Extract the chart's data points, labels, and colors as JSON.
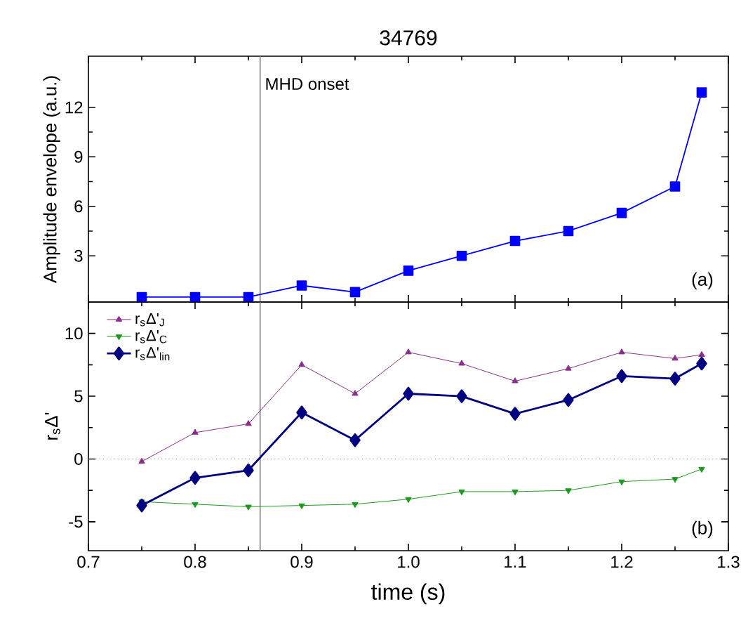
{
  "chart_data": [
    {
      "type": "line",
      "title": "34769",
      "ylabel": "Amplitude envelope (a.u.)",
      "xlim": [
        0.7,
        1.3
      ],
      "ylim": [
        0.2,
        15.1
      ],
      "xticks": [
        0.7,
        0.8,
        0.9,
        1,
        1.1,
        1.2,
        1.3
      ],
      "yticks": [
        3,
        6,
        9,
        12
      ],
      "tick_labels": "y",
      "grid": false,
      "legend": false,
      "x": [
        0.75,
        0.8,
        0.85,
        0.9,
        0.95,
        1.0,
        1.05,
        1.1,
        1.15,
        1.2,
        1.25,
        1.275
      ],
      "series": [
        {
          "color": "#0000ff",
          "marker": "square",
          "values": [
            0.5,
            0.5,
            0.5,
            1.2,
            0.8,
            2.1,
            3.0,
            3.9,
            4.5,
            5.6,
            7.2,
            12.9
          ]
        }
      ],
      "ref_lines": [
        {
          "axis": "x",
          "value": 0.861,
          "label": "MHD onset",
          "color": "#808080",
          "line_style": "solid"
        }
      ],
      "annotations": [
        "(a)"
      ]
    },
    {
      "type": "line",
      "xlabel": "time (s)",
      "ylabel": "r$_{s}$Δ'",
      "xlim": [
        0.7,
        1.3
      ],
      "ylim": [
        -7.3,
        12.5
      ],
      "xticks": [
        0.7,
        0.8,
        0.9,
        {
          "value": 1.0,
          "label": "1.0"
        },
        1.1,
        1.2,
        1.3
      ],
      "yticks": [
        -5,
        0,
        5,
        10
      ],
      "grid": false,
      "legend": "top left",
      "x": [
        0.75,
        0.8,
        0.85,
        0.9,
        0.95,
        1.0,
        1.05,
        1.1,
        1.15,
        1.2,
        1.25,
        1.275
      ],
      "series": [
        {
          "name": "r$_{s}$Δ'$_{J}$",
          "color": "#8b2e8b",
          "marker": "triangle",
          "values": [
            -0.2,
            2.1,
            2.8,
            7.5,
            5.2,
            8.5,
            7.6,
            6.2,
            7.2,
            8.5,
            8.0,
            8.3
          ]
        },
        {
          "name": "r$_{s}$Δ'$_{C}$",
          "color": "#1e9a1e",
          "marker": "triangle-down",
          "values": [
            -3.4,
            -3.6,
            -3.8,
            -3.7,
            -3.6,
            -3.2,
            -2.6,
            -2.6,
            -2.5,
            -1.8,
            -1.6,
            -0.8
          ]
        },
        {
          "name": "r$_{s}$Δ'$_{lin}$",
          "color": "#000080",
          "marker": "diamond",
          "values": [
            -3.7,
            -1.5,
            -0.9,
            3.7,
            1.5,
            5.2,
            5.0,
            3.6,
            4.7,
            6.6,
            6.4,
            7.6
          ]
        }
      ],
      "ref_lines": [
        {
          "axis": "x",
          "value": 0.861,
          "color": "#808080",
          "line_style": "solid"
        },
        {
          "axis": "y",
          "value": 0,
          "color": "#a0a0a0",
          "line_style": "dotted"
        }
      ],
      "annotations": [
        "(b)"
      ]
    }
  ]
}
